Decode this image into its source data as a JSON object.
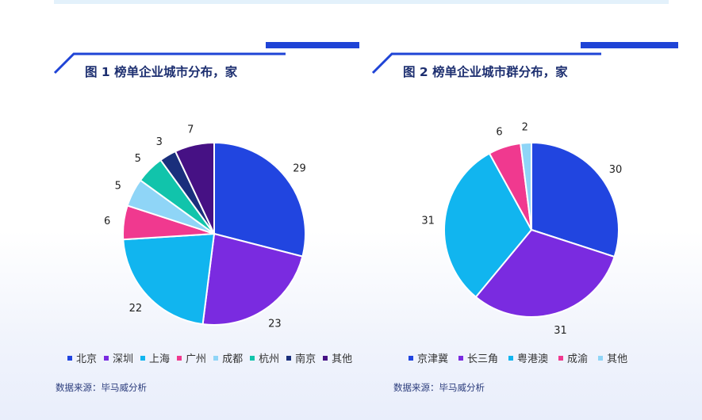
{
  "charts": [
    {
      "title": "图 1 榜单企业城市分布，家",
      "source": "数据来源：毕马威分析",
      "chart_data": {
        "type": "pie",
        "title": "图 1 榜单企业城市分布，家",
        "categories": [
          "北京",
          "深圳",
          "上海",
          "广州",
          "成都",
          "杭州",
          "南京",
          "其他"
        ],
        "values": [
          29,
          23,
          22,
          6,
          5,
          5,
          3,
          7
        ],
        "colors": [
          "#2145e0",
          "#7a2be0",
          "#11b5ef",
          "#f0398f",
          "#8fd5f7",
          "#11c4ab",
          "#1a2f7c",
          "#461184"
        ],
        "legend": "bottom"
      }
    },
    {
      "title": "图 2 榜单企业城市群分布，家",
      "source": "数据来源：毕马威分析",
      "chart_data": {
        "type": "pie",
        "title": "图 2 榜单企业城市群分布，家",
        "categories": [
          "京津冀",
          "长三角",
          "粤港澳",
          "成渝",
          "其他"
        ],
        "values": [
          30,
          31,
          31,
          6,
          2
        ],
        "colors": [
          "#2145e0",
          "#7a2be0",
          "#11b5ef",
          "#f0398f",
          "#8fd5f7"
        ],
        "legend": "bottom"
      }
    }
  ]
}
